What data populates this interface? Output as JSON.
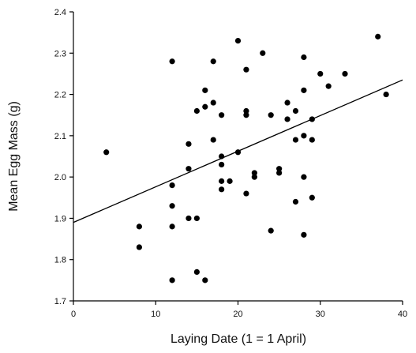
{
  "chart_data": {
    "type": "scatter",
    "title": "",
    "xlabel": "Laying Date (1 = 1 April)",
    "ylabel": "Mean Egg Mass (g)",
    "xlim": [
      0,
      40
    ],
    "ylim": [
      1.7,
      2.4
    ],
    "x_ticks": [
      "0",
      "10",
      "20",
      "30",
      "40"
    ],
    "y_ticks": [
      "1.7",
      "1.8",
      "1.9",
      "2.0",
      "2.1",
      "2.2",
      "2.3",
      "2.4"
    ],
    "grid": false,
    "legend": "none",
    "marker_color": "#000000",
    "points": [
      {
        "x": 4,
        "y": 2.06
      },
      {
        "x": 8,
        "y": 1.88
      },
      {
        "x": 8,
        "y": 1.83
      },
      {
        "x": 12,
        "y": 2.28
      },
      {
        "x": 12,
        "y": 1.98
      },
      {
        "x": 12,
        "y": 1.93
      },
      {
        "x": 12,
        "y": 1.88
      },
      {
        "x": 12,
        "y": 1.75
      },
      {
        "x": 14,
        "y": 2.08
      },
      {
        "x": 14,
        "y": 2.02
      },
      {
        "x": 14,
        "y": 1.9
      },
      {
        "x": 15,
        "y": 2.16
      },
      {
        "x": 15,
        "y": 1.9
      },
      {
        "x": 15,
        "y": 1.77
      },
      {
        "x": 16,
        "y": 2.21
      },
      {
        "x": 16,
        "y": 2.17
      },
      {
        "x": 16,
        "y": 1.75
      },
      {
        "x": 17,
        "y": 2.28
      },
      {
        "x": 17,
        "y": 2.18
      },
      {
        "x": 17,
        "y": 2.09
      },
      {
        "x": 18,
        "y": 2.15
      },
      {
        "x": 18,
        "y": 2.05
      },
      {
        "x": 18,
        "y": 2.03
      },
      {
        "x": 18,
        "y": 1.99
      },
      {
        "x": 18,
        "y": 1.97
      },
      {
        "x": 19,
        "y": 1.99
      },
      {
        "x": 20,
        "y": 2.33
      },
      {
        "x": 20,
        "y": 2.06
      },
      {
        "x": 21,
        "y": 2.26
      },
      {
        "x": 21,
        "y": 2.16
      },
      {
        "x": 21,
        "y": 2.15
      },
      {
        "x": 21,
        "y": 1.96
      },
      {
        "x": 22,
        "y": 2.01
      },
      {
        "x": 22,
        "y": 2.0
      },
      {
        "x": 23,
        "y": 2.3
      },
      {
        "x": 24,
        "y": 2.15
      },
      {
        "x": 24,
        "y": 1.87
      },
      {
        "x": 25,
        "y": 2.02
      },
      {
        "x": 25,
        "y": 2.01
      },
      {
        "x": 26,
        "y": 2.18
      },
      {
        "x": 26,
        "y": 2.14
      },
      {
        "x": 27,
        "y": 2.16
      },
      {
        "x": 27,
        "y": 2.09
      },
      {
        "x": 27,
        "y": 1.94
      },
      {
        "x": 28,
        "y": 2.29
      },
      {
        "x": 28,
        "y": 2.21
      },
      {
        "x": 28,
        "y": 2.1
      },
      {
        "x": 28,
        "y": 2.0
      },
      {
        "x": 28,
        "y": 1.86
      },
      {
        "x": 29,
        "y": 2.14
      },
      {
        "x": 29,
        "y": 2.09
      },
      {
        "x": 29,
        "y": 1.95
      },
      {
        "x": 30,
        "y": 2.25
      },
      {
        "x": 31,
        "y": 2.22
      },
      {
        "x": 33,
        "y": 2.25
      },
      {
        "x": 37,
        "y": 2.34
      },
      {
        "x": 38,
        "y": 2.2
      }
    ],
    "regression_line": {
      "x": [
        0,
        40
      ],
      "y": [
        1.89,
        2.235
      ]
    }
  }
}
